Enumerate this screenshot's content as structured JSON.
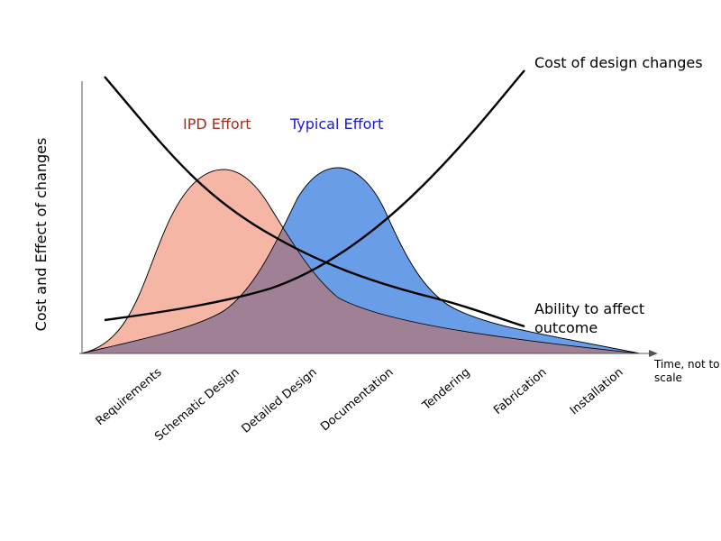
{
  "diagram": {
    "y_axis_label": "Cost and Effect of changes",
    "x_axis_label_line1": "Time, not to",
    "x_axis_label_line2": "scale",
    "phases": [
      "Requirements",
      "Schematic Design",
      "Detailed Design",
      "Documentation",
      "Tendering",
      "Fabrication",
      "Installation"
    ],
    "curves": {
      "ipd_effort": {
        "label": "IPD Effort",
        "label_color": "#a03020",
        "fill": "#f5b6a5"
      },
      "typical_effort": {
        "label": "Typical Effort",
        "label_color": "#1a1acc",
        "fill": "#6a9de8"
      },
      "overlap_fill": "#9f8095",
      "cost_of_design_changes": {
        "label": "Cost of design changes"
      },
      "ability_to_affect_outcome": {
        "label_line1": "Ability to affect",
        "label_line2": "outcome"
      }
    }
  }
}
